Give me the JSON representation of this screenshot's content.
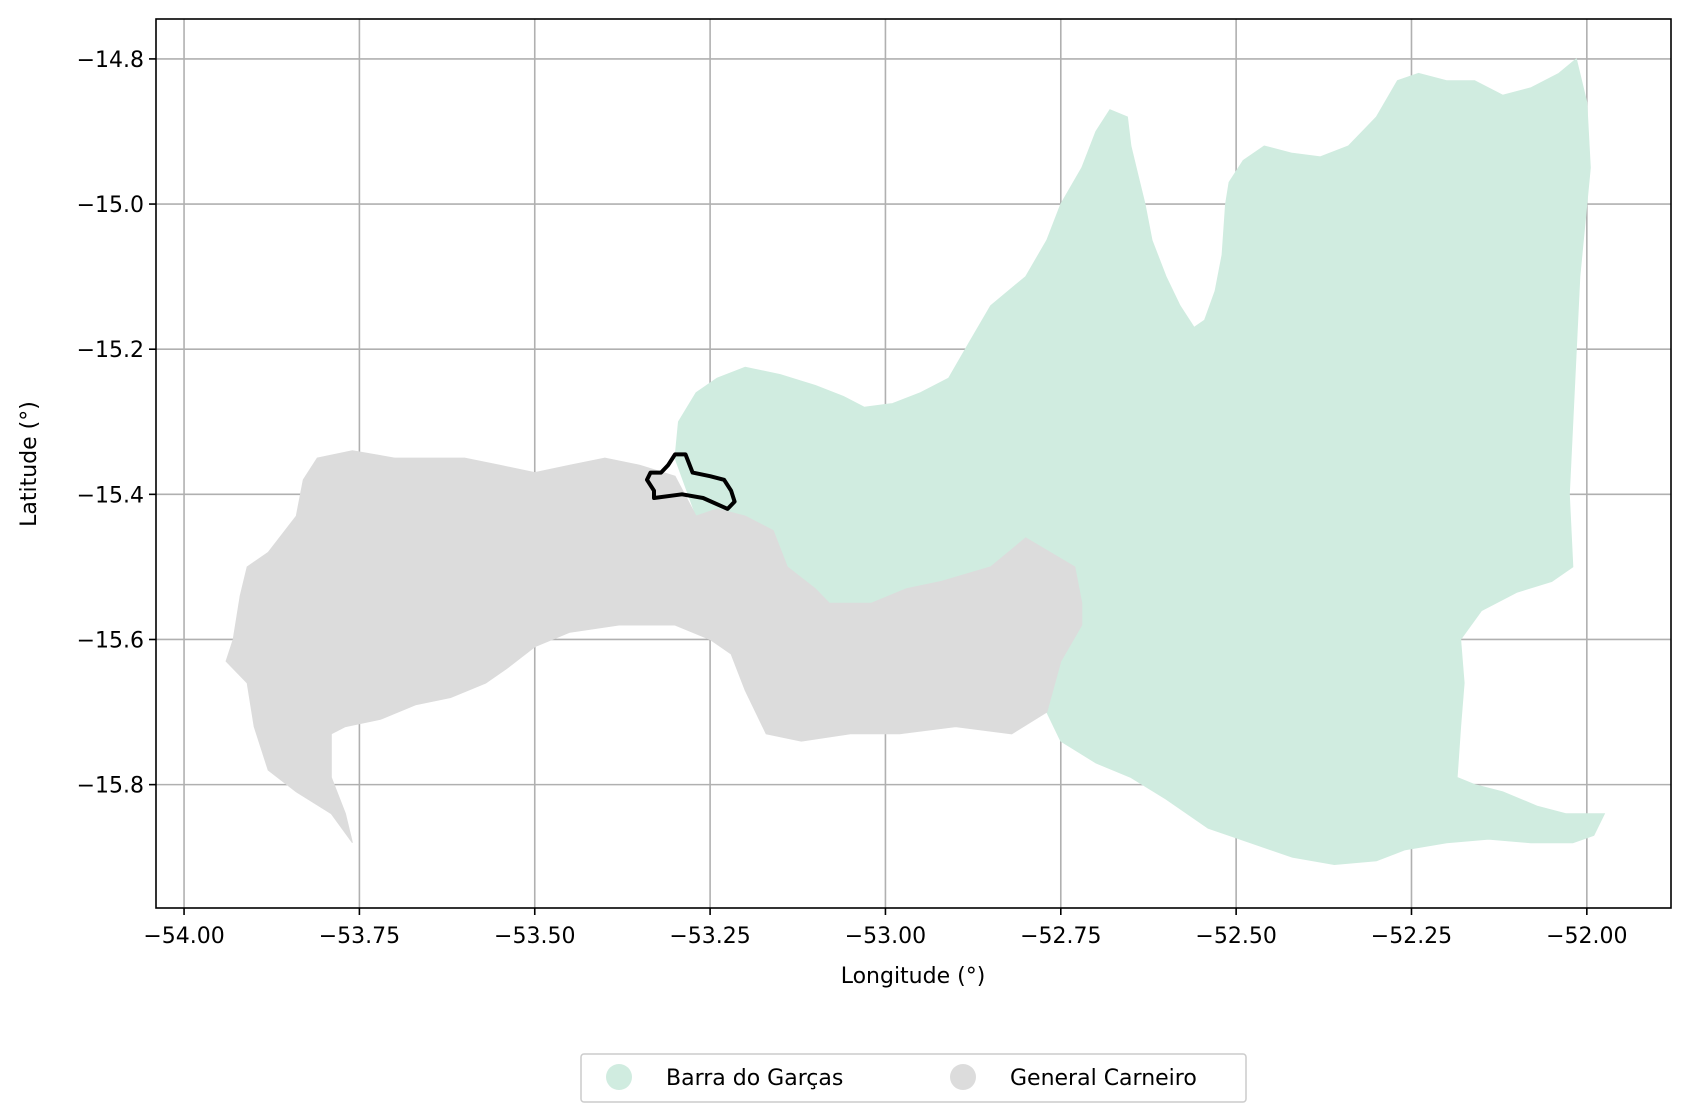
{
  "chart_data": {
    "type": "map",
    "xlabel": "Longitude (°)",
    "ylabel": "Latitude (°)",
    "xlim": [
      -54.04,
      -51.88
    ],
    "ylim": [
      -15.97,
      -14.745
    ],
    "grid": true,
    "x_ticks": [
      {
        "value": -54.0,
        "label": "−54.00"
      },
      {
        "value": -53.75,
        "label": "−53.75"
      },
      {
        "value": -53.5,
        "label": "−53.50"
      },
      {
        "value": -53.25,
        "label": "−53.25"
      },
      {
        "value": -53.0,
        "label": "−53.00"
      },
      {
        "value": -52.75,
        "label": "−52.75"
      },
      {
        "value": -52.5,
        "label": "−52.50"
      },
      {
        "value": -52.25,
        "label": "−52.25"
      },
      {
        "value": -52.0,
        "label": "−52.00"
      }
    ],
    "y_ticks": [
      {
        "value": -14.8,
        "label": "−14.8"
      },
      {
        "value": -15.0,
        "label": "−15.0"
      },
      {
        "value": -15.2,
        "label": "−15.2"
      },
      {
        "value": -15.4,
        "label": "−15.4"
      },
      {
        "value": -15.6,
        "label": "−15.6"
      },
      {
        "value": -15.8,
        "label": "−15.8"
      }
    ],
    "legend": {
      "placement": "bottom-center",
      "entries": [
        {
          "label": "Barra do Garças",
          "color": "#d0ece0"
        },
        {
          "label": "General Carneiro",
          "color": "#dcdcdc"
        }
      ]
    },
    "regions": [
      {
        "name": "Barra do Garças",
        "color": "#d0ece0",
        "coords": [
          [
            -53.27,
            -15.43
          ],
          [
            -53.3,
            -15.35
          ],
          [
            -53.295,
            -15.3
          ],
          [
            -53.27,
            -15.26
          ],
          [
            -53.24,
            -15.24
          ],
          [
            -53.2,
            -15.225
          ],
          [
            -53.15,
            -15.235
          ],
          [
            -53.1,
            -15.25
          ],
          [
            -53.06,
            -15.265
          ],
          [
            -53.03,
            -15.28
          ],
          [
            -52.99,
            -15.275
          ],
          [
            -52.95,
            -15.26
          ],
          [
            -52.91,
            -15.24
          ],
          [
            -52.88,
            -15.19
          ],
          [
            -52.85,
            -15.14
          ],
          [
            -52.8,
            -15.1
          ],
          [
            -52.77,
            -15.05
          ],
          [
            -52.75,
            -15.0
          ],
          [
            -52.72,
            -14.95
          ],
          [
            -52.7,
            -14.9
          ],
          [
            -52.68,
            -14.87
          ],
          [
            -52.655,
            -14.88
          ],
          [
            -52.65,
            -14.92
          ],
          [
            -52.64,
            -14.96
          ],
          [
            -52.63,
            -15.0
          ],
          [
            -52.62,
            -15.05
          ],
          [
            -52.6,
            -15.1
          ],
          [
            -52.58,
            -15.14
          ],
          [
            -52.56,
            -15.17
          ],
          [
            -52.545,
            -15.16
          ],
          [
            -52.53,
            -15.12
          ],
          [
            -52.52,
            -15.07
          ],
          [
            -52.515,
            -15.0
          ],
          [
            -52.51,
            -14.97
          ],
          [
            -52.49,
            -14.94
          ],
          [
            -52.46,
            -14.92
          ],
          [
            -52.42,
            -14.93
          ],
          [
            -52.38,
            -14.935
          ],
          [
            -52.34,
            -14.92
          ],
          [
            -52.3,
            -14.88
          ],
          [
            -52.27,
            -14.83
          ],
          [
            -52.24,
            -14.82
          ],
          [
            -52.2,
            -14.83
          ],
          [
            -52.16,
            -14.83
          ],
          [
            -52.12,
            -14.85
          ],
          [
            -52.08,
            -14.84
          ],
          [
            -52.04,
            -14.82
          ],
          [
            -52.015,
            -14.8
          ],
          [
            -52.0,
            -14.86
          ],
          [
            -51.995,
            -14.95
          ],
          [
            -52.0,
            -15.0
          ],
          [
            -52.01,
            -15.1
          ],
          [
            -52.015,
            -15.2
          ],
          [
            -52.02,
            -15.3
          ],
          [
            -52.025,
            -15.4
          ],
          [
            -52.02,
            -15.5
          ],
          [
            -52.05,
            -15.52
          ],
          [
            -52.1,
            -15.535
          ],
          [
            -52.15,
            -15.56
          ],
          [
            -52.18,
            -15.6
          ],
          [
            -52.175,
            -15.66
          ],
          [
            -52.18,
            -15.72
          ],
          [
            -52.185,
            -15.79
          ],
          [
            -52.16,
            -15.8
          ],
          [
            -52.12,
            -15.81
          ],
          [
            -52.07,
            -15.83
          ],
          [
            -52.03,
            -15.84
          ],
          [
            -51.995,
            -15.84
          ],
          [
            -51.975,
            -15.84
          ],
          [
            -51.99,
            -15.87
          ],
          [
            -52.02,
            -15.88
          ],
          [
            -52.08,
            -15.88
          ],
          [
            -52.14,
            -15.875
          ],
          [
            -52.2,
            -15.88
          ],
          [
            -52.26,
            -15.89
          ],
          [
            -52.3,
            -15.905
          ],
          [
            -52.36,
            -15.91
          ],
          [
            -52.42,
            -15.9
          ],
          [
            -52.48,
            -15.88
          ],
          [
            -52.54,
            -15.86
          ],
          [
            -52.6,
            -15.82
          ],
          [
            -52.65,
            -15.79
          ],
          [
            -52.7,
            -15.77
          ],
          [
            -52.75,
            -15.74
          ],
          [
            -52.77,
            -15.7
          ],
          [
            -52.77,
            -15.64
          ],
          [
            -52.73,
            -15.57
          ],
          [
            -52.72,
            -15.55
          ],
          [
            -52.73,
            -15.5
          ],
          [
            -52.8,
            -15.46
          ],
          [
            -52.85,
            -15.5
          ],
          [
            -52.92,
            -15.52
          ],
          [
            -52.97,
            -15.53
          ],
          [
            -53.02,
            -15.55
          ],
          [
            -53.08,
            -15.55
          ],
          [
            -53.1,
            -15.53
          ],
          [
            -53.14,
            -15.5
          ],
          [
            -53.16,
            -15.45
          ],
          [
            -53.2,
            -15.43
          ],
          [
            -53.24,
            -15.42
          ]
        ]
      },
      {
        "name": "General Carneiro",
        "color": "#dcdcdc",
        "coords": [
          [
            -53.3,
            -15.375
          ],
          [
            -53.35,
            -15.36
          ],
          [
            -53.4,
            -15.35
          ],
          [
            -53.45,
            -15.36
          ],
          [
            -53.5,
            -15.37
          ],
          [
            -53.55,
            -15.36
          ],
          [
            -53.6,
            -15.35
          ],
          [
            -53.65,
            -15.35
          ],
          [
            -53.7,
            -15.35
          ],
          [
            -53.76,
            -15.34
          ],
          [
            -53.81,
            -15.35
          ],
          [
            -53.83,
            -15.38
          ],
          [
            -53.84,
            -15.43
          ],
          [
            -53.88,
            -15.48
          ],
          [
            -53.91,
            -15.5
          ],
          [
            -53.92,
            -15.54
          ],
          [
            -53.93,
            -15.6
          ],
          [
            -53.94,
            -15.63
          ],
          [
            -53.91,
            -15.66
          ],
          [
            -53.9,
            -15.72
          ],
          [
            -53.88,
            -15.78
          ],
          [
            -53.84,
            -15.81
          ],
          [
            -53.79,
            -15.84
          ],
          [
            -53.76,
            -15.88
          ],
          [
            -53.77,
            -15.84
          ],
          [
            -53.79,
            -15.79
          ],
          [
            -53.79,
            -15.73
          ],
          [
            -53.77,
            -15.72
          ],
          [
            -53.72,
            -15.71
          ],
          [
            -53.67,
            -15.69
          ],
          [
            -53.62,
            -15.68
          ],
          [
            -53.57,
            -15.66
          ],
          [
            -53.54,
            -15.64
          ],
          [
            -53.5,
            -15.61
          ],
          [
            -53.45,
            -15.59
          ],
          [
            -53.38,
            -15.58
          ],
          [
            -53.3,
            -15.58
          ],
          [
            -53.25,
            -15.6
          ],
          [
            -53.22,
            -15.62
          ],
          [
            -53.2,
            -15.67
          ],
          [
            -53.17,
            -15.73
          ],
          [
            -53.12,
            -15.74
          ],
          [
            -53.05,
            -15.73
          ],
          [
            -52.98,
            -15.73
          ],
          [
            -52.9,
            -15.72
          ],
          [
            -52.82,
            -15.73
          ],
          [
            -52.77,
            -15.7
          ],
          [
            -52.75,
            -15.63
          ],
          [
            -52.72,
            -15.58
          ],
          [
            -52.72,
            -15.55
          ],
          [
            -52.73,
            -15.5
          ],
          [
            -52.8,
            -15.46
          ],
          [
            -52.85,
            -15.5
          ],
          [
            -52.92,
            -15.52
          ],
          [
            -52.97,
            -15.53
          ],
          [
            -53.02,
            -15.55
          ],
          [
            -53.08,
            -15.55
          ],
          [
            -53.1,
            -15.53
          ],
          [
            -53.14,
            -15.5
          ],
          [
            -53.16,
            -15.45
          ],
          [
            -53.2,
            -15.43
          ],
          [
            -53.24,
            -15.42
          ],
          [
            -53.27,
            -15.43
          ]
        ]
      }
    ],
    "outline": {
      "color": "#000000",
      "coords": [
        [
          -53.33,
          -15.395
        ],
        [
          -53.34,
          -15.38
        ],
        [
          -53.335,
          -15.37
        ],
        [
          -53.32,
          -15.37
        ],
        [
          -53.31,
          -15.36
        ],
        [
          -53.3,
          -15.345
        ],
        [
          -53.285,
          -15.345
        ],
        [
          -53.275,
          -15.37
        ],
        [
          -53.25,
          -15.375
        ],
        [
          -53.23,
          -15.38
        ],
        [
          -53.22,
          -15.395
        ],
        [
          -53.215,
          -15.41
        ],
        [
          -53.225,
          -15.42
        ],
        [
          -53.26,
          -15.405
        ],
        [
          -53.29,
          -15.4
        ],
        [
          -53.33,
          -15.405
        ]
      ]
    }
  }
}
